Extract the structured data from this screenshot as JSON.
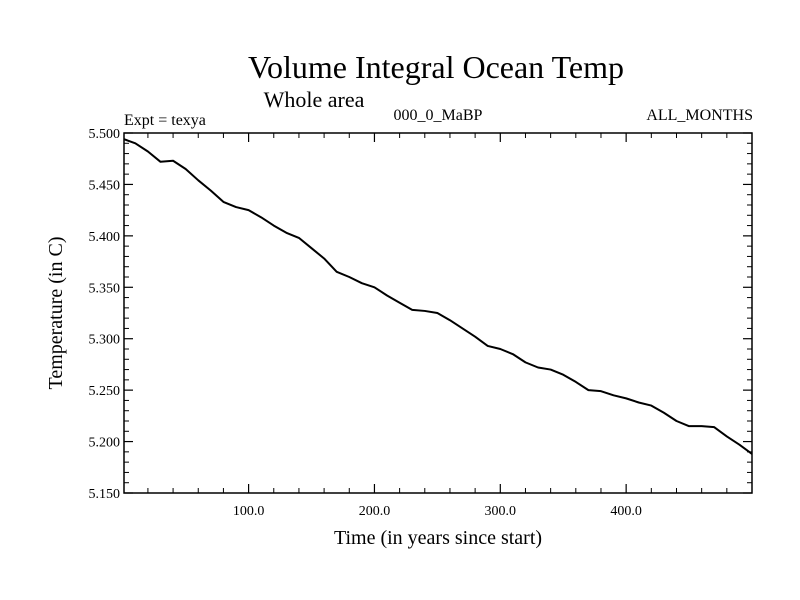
{
  "chart_data": {
    "type": "line",
    "title": "Volume Integral Ocean Temp",
    "subtitle": "Whole area",
    "left_label": "Expt = texya",
    "center_label": "000_0_MaBP",
    "right_label": "ALL_MONTHS",
    "xlabel": "Time (in years since start)",
    "ylabel": "Temperature (in C)",
    "xlim": [
      1,
      500
    ],
    "ylim": [
      5.15,
      5.5
    ],
    "x_ticks": [
      {
        "value": 100,
        "label": "100.0"
      },
      {
        "value": 200,
        "label": "200.0"
      },
      {
        "value": 300,
        "label": "300.0"
      },
      {
        "value": 400,
        "label": "400.0"
      }
    ],
    "y_ticks": [
      {
        "value": 5.15,
        "label": "5.150"
      },
      {
        "value": 5.2,
        "label": "5.200"
      },
      {
        "value": 5.25,
        "label": "5.250"
      },
      {
        "value": 5.3,
        "label": "5.300"
      },
      {
        "value": 5.35,
        "label": "5.350"
      },
      {
        "value": 5.4,
        "label": "5.400"
      },
      {
        "value": 5.45,
        "label": "5.450"
      },
      {
        "value": 5.5,
        "label": "5.500"
      }
    ],
    "grid": false,
    "series": [
      {
        "color": "#000000",
        "x": [
          1,
          10,
          20,
          30,
          40,
          50,
          60,
          70,
          80,
          90,
          100,
          110,
          120,
          130,
          140,
          150,
          160,
          170,
          180,
          190,
          200,
          210,
          220,
          230,
          240,
          250,
          260,
          270,
          280,
          290,
          300,
          310,
          320,
          330,
          340,
          350,
          360,
          370,
          380,
          390,
          400,
          410,
          420,
          430,
          440,
          450,
          460,
          470,
          480,
          490,
          500
        ],
        "y": [
          5.494,
          5.49,
          5.482,
          5.472,
          5.473,
          5.465,
          5.454,
          5.444,
          5.433,
          5.428,
          5.425,
          5.418,
          5.41,
          5.403,
          5.398,
          5.388,
          5.378,
          5.365,
          5.36,
          5.354,
          5.35,
          5.342,
          5.335,
          5.328,
          5.327,
          5.325,
          5.318,
          5.31,
          5.302,
          5.293,
          5.29,
          5.285,
          5.277,
          5.272,
          5.27,
          5.265,
          5.258,
          5.25,
          5.249,
          5.245,
          5.242,
          5.238,
          5.235,
          5.228,
          5.22,
          5.215,
          5.215,
          5.214,
          5.205,
          5.197,
          5.188
        ]
      }
    ]
  }
}
